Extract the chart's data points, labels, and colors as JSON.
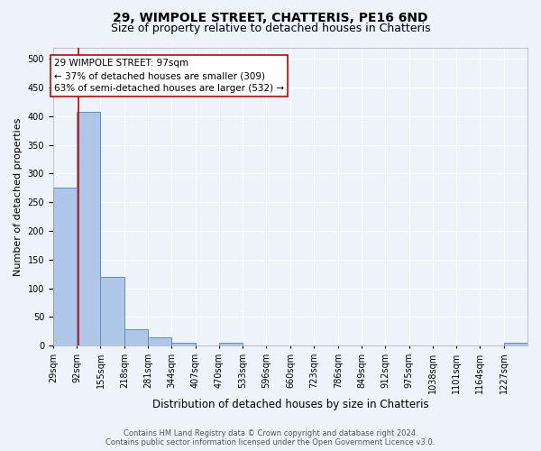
{
  "title1": "29, WIMPOLE STREET, CHATTERIS, PE16 6ND",
  "title2": "Size of property relative to detached houses in Chatteris",
  "xlabel": "Distribution of detached houses by size in Chatteris",
  "ylabel": "Number of detached properties",
  "bin_edges": [
    29,
    92,
    155,
    218,
    281,
    344,
    407,
    470,
    533,
    596,
    660,
    723,
    786,
    849,
    912,
    975,
    1038,
    1101,
    1164,
    1227,
    1290
  ],
  "bar_heights": [
    275,
    407,
    120,
    28,
    14,
    5,
    0,
    5,
    0,
    0,
    0,
    0,
    0,
    0,
    0,
    0,
    0,
    0,
    0,
    5
  ],
  "bar_color": "#aec6e8",
  "bar_edge_color": "#5a8fc0",
  "property_sqm": 97,
  "vline_color": "#cc0000",
  "annotation_line1": "29 WIMPOLE STREET: 97sqm",
  "annotation_line2": "← 37% of detached houses are smaller (309)",
  "annotation_line3": "63% of semi-detached houses are larger (532) →",
  "annotation_box_color": "#ffffff",
  "annotation_box_edge_color": "#cc0000",
  "ylim": [
    0,
    520
  ],
  "yticks": [
    0,
    50,
    100,
    150,
    200,
    250,
    300,
    350,
    400,
    450,
    500
  ],
  "footer1": "Contains HM Land Registry data © Crown copyright and database right 2024.",
  "footer2": "Contains public sector information licensed under the Open Government Licence v3.0.",
  "bg_color": "#eef2fa",
  "grid_color": "#ffffff",
  "title1_fontsize": 10,
  "title2_fontsize": 9,
  "annotation_fontsize": 7.5,
  "tick_label_fontsize": 7,
  "ylabel_fontsize": 8,
  "xlabel_fontsize": 8.5,
  "footer_fontsize": 6
}
